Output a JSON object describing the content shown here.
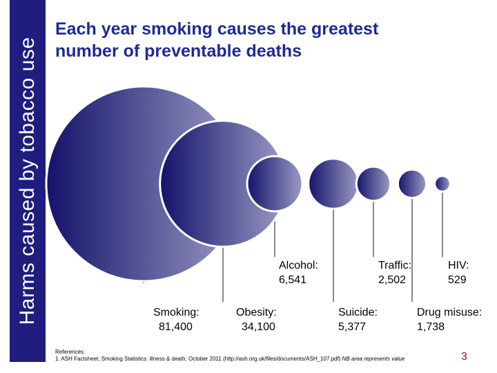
{
  "slide": {
    "side_title": "Harms caused by tobacco use",
    "title_line1": "Each year smoking causes the greatest",
    "title_line2": "number of preventable deaths",
    "references_heading": "References:",
    "reference_1": "1. ASH Factsheet, Smoking Statistics: illness & death, October  2011 (http://ash.org.uk/files/documents/ASH_107.pdf)",
    "reference_note": "NB area represents value",
    "page_number": "3"
  },
  "colors": {
    "band": "#1f1d7e",
    "title": "#1f2a93",
    "bubble_dark": "#14126a",
    "bubble_light": "#9b9cc6",
    "page_number": "#c0002a"
  },
  "chart_data": {
    "type": "bubble",
    "encoding": "area represents value",
    "items": [
      {
        "name": "Smoking:",
        "value_label": "81,400",
        "value": 81400
      },
      {
        "name": "Obesity:",
        "value_label": "34,100",
        "value": 34100
      },
      {
        "name": "Alcohol:",
        "value_label": "6,541",
        "value": 6541
      },
      {
        "name": "Suicide:",
        "value_label": "5,377",
        "value": 5377
      },
      {
        "name": "Traffic:",
        "value_label": "2,502",
        "value": 2502
      },
      {
        "name": "Drug misuse:",
        "value_label": "1,738",
        "value": 1738
      },
      {
        "name": "HIV:",
        "value_label": "529",
        "value": 529
      }
    ]
  }
}
